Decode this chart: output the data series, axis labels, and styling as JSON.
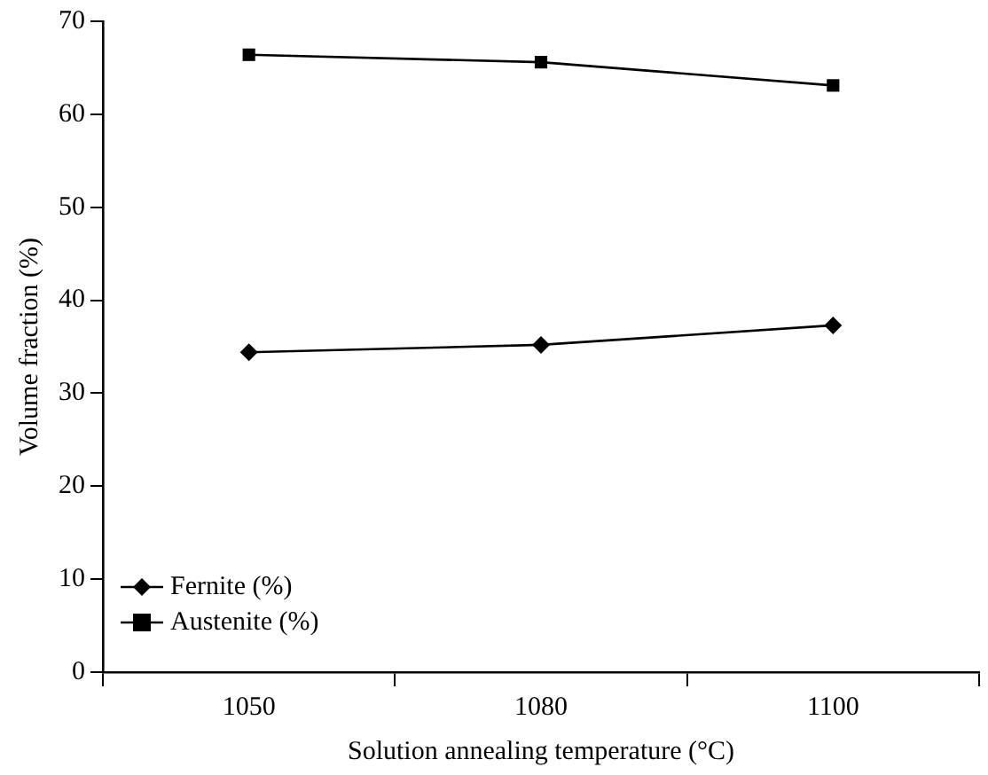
{
  "chart_data": {
    "type": "line",
    "xlabel": "Solution annealing temperature (°C)",
    "ylabel": "Volume fraction (%)",
    "categories": [
      "1050",
      "1080",
      "1100"
    ],
    "series": [
      {
        "name": "Fernite (%)",
        "color": "#000000",
        "marker": "diamond",
        "values": [
          34.4,
          35.2,
          37.3
        ]
      },
      {
        "name": "Austenite (%)",
        "color": "#000000",
        "marker": "square",
        "values": [
          66.4,
          65.6,
          63.1
        ]
      }
    ],
    "ylim": [
      0,
      70
    ],
    "yticks": [
      0,
      10,
      20,
      30,
      40,
      50,
      60,
      70
    ],
    "grid": false,
    "legend": "bottom left",
    "line_style": "solid"
  }
}
